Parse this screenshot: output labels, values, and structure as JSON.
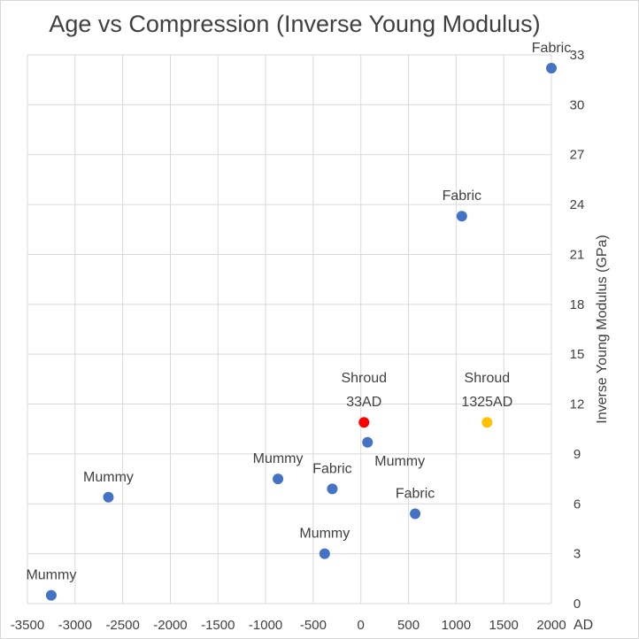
{
  "chart_data": {
    "type": "scatter",
    "title": "Age vs Compression (Inverse Young Modulus)",
    "ylabel": "Inverse Young Modulus (GPa)",
    "xlabel": "",
    "x_unit_label": "AD",
    "xlim": [
      -3500,
      2000
    ],
    "ylim": [
      0,
      33
    ],
    "x_ticks": [
      -3500,
      -3000,
      -2500,
      -2000,
      -1500,
      -1000,
      -500,
      0,
      500,
      1000,
      1500,
      2000
    ],
    "y_ticks": [
      0,
      3,
      6,
      9,
      12,
      15,
      18,
      21,
      24,
      27,
      30,
      33
    ],
    "grid": true,
    "y_axis_position": "right",
    "colors": {
      "default": "#4472c4",
      "shroud_33ad": "#ff0000",
      "shroud_1325ad": "#ffc000"
    },
    "points": [
      {
        "x": -3250,
        "y": 0.5,
        "label": [
          "Mummy"
        ],
        "label_pos": "top",
        "color": "#4472c4"
      },
      {
        "x": -2650,
        "y": 6.4,
        "label": [
          "Mummy"
        ],
        "label_pos": "top",
        "color": "#4472c4"
      },
      {
        "x": -870,
        "y": 7.5,
        "label": [
          "Mummy"
        ],
        "label_pos": "top",
        "color": "#4472c4"
      },
      {
        "x": -300,
        "y": 6.9,
        "label": [
          "Fabric"
        ],
        "label_pos": "top",
        "color": "#4472c4"
      },
      {
        "x": -380,
        "y": 3.0,
        "label": [
          "Mummy"
        ],
        "label_pos": "top",
        "color": "#4472c4"
      },
      {
        "x": 70,
        "y": 9.7,
        "label": [
          "Mummy"
        ],
        "label_pos": "below-right",
        "color": "#4472c4"
      },
      {
        "x": 570,
        "y": 5.4,
        "label": [
          "Fabric"
        ],
        "label_pos": "top",
        "color": "#4472c4"
      },
      {
        "x": 1060,
        "y": 23.3,
        "label": [
          "Fabric"
        ],
        "label_pos": "top",
        "color": "#4472c4"
      },
      {
        "x": 2000,
        "y": 32.2,
        "label": [
          "Fabric"
        ],
        "label_pos": "top",
        "color": "#4472c4"
      },
      {
        "x": 33,
        "y": 10.9,
        "label": [
          "Shroud",
          "33AD"
        ],
        "label_pos": "top",
        "color": "#ff0000"
      },
      {
        "x": 1325,
        "y": 10.9,
        "label": [
          "Shroud",
          "1325AD"
        ],
        "label_pos": "top",
        "color": "#ffc000"
      }
    ]
  }
}
